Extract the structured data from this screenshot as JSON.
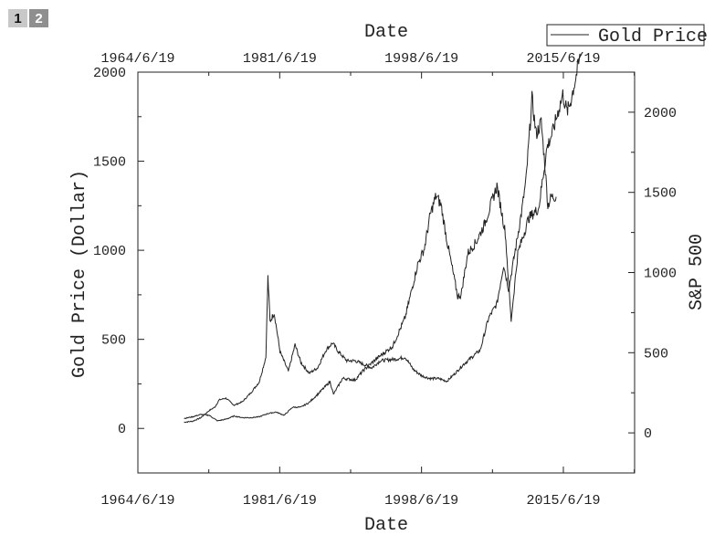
{
  "tabs": [
    {
      "label": "1"
    },
    {
      "label": "2"
    }
  ],
  "chart_data": {
    "type": "line",
    "xlabel": "Date",
    "x2label": "Date",
    "ylabel": "Gold Price (Dollar)",
    "y2label": "S&P 500",
    "x_ticks": [
      "1964/6/19",
      "1981/6/19",
      "1998/6/19",
      "2015/6/19"
    ],
    "x_tick_years": [
      1964.46,
      1981.46,
      1998.46,
      2015.46
    ],
    "xlim": [
      1964.46,
      2024.0
    ],
    "ylim": [
      -250,
      2000
    ],
    "y_ticks": [
      0,
      500,
      1000,
      1500,
      2000
    ],
    "y2lim": [
      -250,
      2250
    ],
    "y2_ticks": [
      0,
      500,
      1000,
      1500,
      2000
    ],
    "legend": {
      "position": "top-right",
      "entries": [
        "Gold Price"
      ]
    },
    "grid": false,
    "series": [
      {
        "name": "Gold Price",
        "axis": "left",
        "points": [
          [
            1970.0,
            35
          ],
          [
            1971.0,
            40
          ],
          [
            1972.0,
            60
          ],
          [
            1973.0,
            100
          ],
          [
            1973.7,
            120
          ],
          [
            1974.2,
            160
          ],
          [
            1975.0,
            170
          ],
          [
            1976.0,
            130
          ],
          [
            1977.0,
            150
          ],
          [
            1978.0,
            200
          ],
          [
            1979.0,
            260
          ],
          [
            1979.8,
            400
          ],
          [
            1980.05,
            850
          ],
          [
            1980.3,
            600
          ],
          [
            1980.8,
            650
          ],
          [
            1981.5,
            430
          ],
          [
            1982.5,
            320
          ],
          [
            1983.3,
            470
          ],
          [
            1984.0,
            370
          ],
          [
            1985.0,
            310
          ],
          [
            1986.0,
            340
          ],
          [
            1987.0,
            440
          ],
          [
            1987.8,
            480
          ],
          [
            1988.5,
            430
          ],
          [
            1989.5,
            380
          ],
          [
            1990.5,
            380
          ],
          [
            1991.5,
            360
          ],
          [
            1992.5,
            340
          ],
          [
            1993.5,
            380
          ],
          [
            1994.5,
            385
          ],
          [
            1995.5,
            390
          ],
          [
            1996.5,
            400
          ],
          [
            1997.5,
            330
          ],
          [
            1998.5,
            295
          ],
          [
            1999.5,
            280
          ],
          [
            2000.5,
            280
          ],
          [
            2001.5,
            265
          ],
          [
            2002.5,
            310
          ],
          [
            2003.5,
            360
          ],
          [
            2004.5,
            400
          ],
          [
            2005.5,
            440
          ],
          [
            2006.5,
            620
          ],
          [
            2007.5,
            700
          ],
          [
            2008.3,
            920
          ],
          [
            2008.9,
            780
          ],
          [
            2009.7,
            1000
          ],
          [
            2010.5,
            1230
          ],
          [
            2011.0,
            1400
          ],
          [
            2011.7,
            1850
          ],
          [
            2012.2,
            1650
          ],
          [
            2012.8,
            1720
          ],
          [
            2013.3,
            1450
          ],
          [
            2013.6,
            1250
          ],
          [
            2014.0,
            1300
          ],
          [
            2014.6,
            1300
          ]
        ]
      },
      {
        "name": "S&P 500",
        "axis": "right",
        "points": [
          [
            1970.0,
            90
          ],
          [
            1971.0,
            100
          ],
          [
            1972.0,
            115
          ],
          [
            1973.0,
            110
          ],
          [
            1974.0,
            75
          ],
          [
            1975.0,
            85
          ],
          [
            1976.0,
            105
          ],
          [
            1977.0,
            95
          ],
          [
            1978.0,
            95
          ],
          [
            1979.0,
            100
          ],
          [
            1980.0,
            120
          ],
          [
            1981.0,
            130
          ],
          [
            1982.0,
            110
          ],
          [
            1983.0,
            160
          ],
          [
            1984.0,
            160
          ],
          [
            1985.0,
            190
          ],
          [
            1986.0,
            240
          ],
          [
            1987.5,
            320
          ],
          [
            1987.9,
            240
          ],
          [
            1989.0,
            340
          ],
          [
            1990.5,
            330
          ],
          [
            1991.5,
            390
          ],
          [
            1993.0,
            460
          ],
          [
            1995.0,
            540
          ],
          [
            1996.5,
            720
          ],
          [
            1998.0,
            1050
          ],
          [
            1998.8,
            1150
          ],
          [
            1999.5,
            1360
          ],
          [
            2000.2,
            1480
          ],
          [
            2000.8,
            1420
          ],
          [
            2001.5,
            1200
          ],
          [
            2002.8,
            850
          ],
          [
            2003.2,
            860
          ],
          [
            2004.0,
            1120
          ],
          [
            2005.0,
            1190
          ],
          [
            2006.0,
            1300
          ],
          [
            2007.5,
            1540
          ],
          [
            2008.5,
            1250
          ],
          [
            2009.2,
            700
          ],
          [
            2010.0,
            1120
          ],
          [
            2011.3,
            1340
          ],
          [
            2012.5,
            1400
          ],
          [
            2013.5,
            1780
          ],
          [
            2014.2,
            1880
          ],
          [
            2014.8,
            2000
          ],
          [
            2015.4,
            2110
          ],
          [
            2015.9,
            2000
          ],
          [
            2016.3,
            2060
          ],
          [
            2017.5,
            2350
          ]
        ]
      }
    ]
  }
}
